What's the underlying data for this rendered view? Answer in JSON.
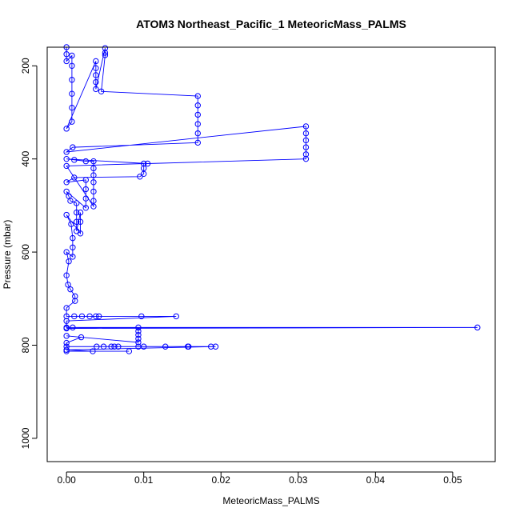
{
  "chart_data": {
    "type": "scatter",
    "title": "ATOM3 Northeast_Pacific_1 MeteoricMass_PALMS",
    "xlabel": "MeteoricMass_PALMS",
    "ylabel": "Pressure (mbar)",
    "xlim": [
      -0.0025,
      0.0555
    ],
    "ylim": [
      1050,
      160
    ],
    "y_reversed": true,
    "x_ticks": [
      0.0,
      0.01,
      0.02,
      0.03,
      0.04,
      0.05
    ],
    "x_tick_labels": [
      "0.00",
      "0.01",
      "0.02",
      "0.03",
      "0.04",
      "0.05"
    ],
    "y_ticks": [
      200,
      400,
      600,
      800,
      1000
    ],
    "y_tick_labels": [
      "200",
      "400",
      "600",
      "800",
      "1000"
    ],
    "grid": false,
    "marker": "open-circle",
    "line_connected": true,
    "series_color": "#0000ff",
    "points": [
      {
        "x": 0.0,
        "y": 160
      },
      {
        "x": 0.0,
        "y": 175
      },
      {
        "x": 0.0,
        "y": 190
      },
      {
        "x": 0.0007,
        "y": 178
      },
      {
        "x": 0.0007,
        "y": 200
      },
      {
        "x": 0.0007,
        "y": 230
      },
      {
        "x": 0.0007,
        "y": 260
      },
      {
        "x": 0.0007,
        "y": 290
      },
      {
        "x": 0.0007,
        "y": 320
      },
      {
        "x": 0.0,
        "y": 335
      },
      {
        "x": 0.0038,
        "y": 190
      },
      {
        "x": 0.0038,
        "y": 205
      },
      {
        "x": 0.0038,
        "y": 220
      },
      {
        "x": 0.0038,
        "y": 235
      },
      {
        "x": 0.0038,
        "y": 250
      },
      {
        "x": 0.005,
        "y": 162
      },
      {
        "x": 0.005,
        "y": 172
      },
      {
        "x": 0.005,
        "y": 177
      },
      {
        "x": 0.0045,
        "y": 255
      },
      {
        "x": 0.017,
        "y": 265
      },
      {
        "x": 0.017,
        "y": 285
      },
      {
        "x": 0.017,
        "y": 305
      },
      {
        "x": 0.017,
        "y": 325
      },
      {
        "x": 0.017,
        "y": 345
      },
      {
        "x": 0.017,
        "y": 365
      },
      {
        "x": 0.0008,
        "y": 375
      },
      {
        "x": 0.0,
        "y": 385
      },
      {
        "x": 0.031,
        "y": 330
      },
      {
        "x": 0.031,
        "y": 345
      },
      {
        "x": 0.031,
        "y": 360
      },
      {
        "x": 0.031,
        "y": 375
      },
      {
        "x": 0.031,
        "y": 390
      },
      {
        "x": 0.031,
        "y": 400
      },
      {
        "x": 0.0105,
        "y": 410
      },
      {
        "x": 0.0,
        "y": 400
      },
      {
        "x": 0.001,
        "y": 402
      },
      {
        "x": 0.0025,
        "y": 405
      },
      {
        "x": 0.0035,
        "y": 405
      },
      {
        "x": 0.0035,
        "y": 420
      },
      {
        "x": 0.0035,
        "y": 435
      },
      {
        "x": 0.0035,
        "y": 450
      },
      {
        "x": 0.0035,
        "y": 470
      },
      {
        "x": 0.0035,
        "y": 490
      },
      {
        "x": 0.0035,
        "y": 502
      },
      {
        "x": 0.0,
        "y": 415
      },
      {
        "x": 0.01,
        "y": 410
      },
      {
        "x": 0.01,
        "y": 420
      },
      {
        "x": 0.01,
        "y": 432
      },
      {
        "x": 0.0095,
        "y": 438
      },
      {
        "x": 0.001,
        "y": 440
      },
      {
        "x": 0.0,
        "y": 450
      },
      {
        "x": 0.0025,
        "y": 445
      },
      {
        "x": 0.0025,
        "y": 465
      },
      {
        "x": 0.0025,
        "y": 485
      },
      {
        "x": 0.0025,
        "y": 505
      },
      {
        "x": 0.0,
        "y": 470
      },
      {
        "x": 0.0003,
        "y": 480
      },
      {
        "x": 0.0005,
        "y": 490
      },
      {
        "x": 0.0013,
        "y": 495
      },
      {
        "x": 0.0013,
        "y": 515
      },
      {
        "x": 0.0013,
        "y": 535
      },
      {
        "x": 0.0013,
        "y": 555
      },
      {
        "x": 0.0018,
        "y": 515
      },
      {
        "x": 0.0018,
        "y": 535
      },
      {
        "x": 0.0018,
        "y": 560
      },
      {
        "x": 0.0,
        "y": 520
      },
      {
        "x": 0.0006,
        "y": 540
      },
      {
        "x": 0.0008,
        "y": 570
      },
      {
        "x": 0.0008,
        "y": 590
      },
      {
        "x": 0.0008,
        "y": 610
      },
      {
        "x": 0.0,
        "y": 600
      },
      {
        "x": 0.0003,
        "y": 620
      },
      {
        "x": 0.0,
        "y": 650
      },
      {
        "x": 0.0002,
        "y": 670
      },
      {
        "x": 0.0005,
        "y": 680
      },
      {
        "x": 0.0011,
        "y": 695
      },
      {
        "x": 0.0011,
        "y": 705
      },
      {
        "x": 0.0,
        "y": 720
      },
      {
        "x": 0.0,
        "y": 738
      },
      {
        "x": 0.001,
        "y": 738
      },
      {
        "x": 0.002,
        "y": 738
      },
      {
        "x": 0.003,
        "y": 738
      },
      {
        "x": 0.0038,
        "y": 738
      },
      {
        "x": 0.0042,
        "y": 738
      },
      {
        "x": 0.0097,
        "y": 738
      },
      {
        "x": 0.0142,
        "y": 738
      },
      {
        "x": 0.0,
        "y": 748
      },
      {
        "x": 0.0,
        "y": 762
      },
      {
        "x": 0.0008,
        "y": 762
      },
      {
        "x": 0.0532,
        "y": 762
      },
      {
        "x": 0.0,
        "y": 764
      },
      {
        "x": 0.0093,
        "y": 762
      },
      {
        "x": 0.0093,
        "y": 770
      },
      {
        "x": 0.0093,
        "y": 778
      },
      {
        "x": 0.0093,
        "y": 786
      },
      {
        "x": 0.0093,
        "y": 794
      },
      {
        "x": 0.0,
        "y": 780
      },
      {
        "x": 0.0019,
        "y": 783
      },
      {
        "x": 0.0,
        "y": 795
      },
      {
        "x": 0.0,
        "y": 803
      },
      {
        "x": 0.0039,
        "y": 803
      },
      {
        "x": 0.0048,
        "y": 803
      },
      {
        "x": 0.0058,
        "y": 803
      },
      {
        "x": 0.0062,
        "y": 803
      },
      {
        "x": 0.0067,
        "y": 803
      },
      {
        "x": 0.0093,
        "y": 803
      },
      {
        "x": 0.01,
        "y": 803
      },
      {
        "x": 0.0128,
        "y": 803
      },
      {
        "x": 0.0157,
        "y": 803
      },
      {
        "x": 0.0158,
        "y": 803
      },
      {
        "x": 0.0187,
        "y": 803
      },
      {
        "x": 0.0193,
        "y": 803
      },
      {
        "x": 0.0,
        "y": 810
      },
      {
        "x": 0.0034,
        "y": 813
      },
      {
        "x": 0.0081,
        "y": 813
      },
      {
        "x": 0.0,
        "y": 813
      }
    ]
  }
}
